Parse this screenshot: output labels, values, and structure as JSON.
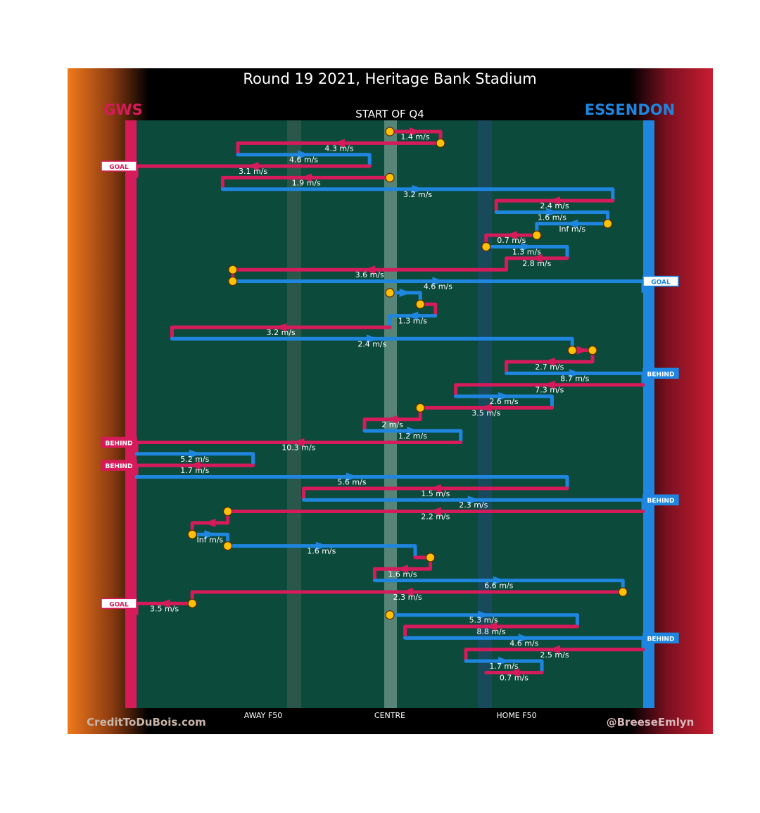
{
  "title": "Round 19 2021, Heritage Bank Stadium",
  "subtitle": "START OF Q4",
  "credit_left": "CreditToDuBois.com",
  "credit_right": "@BreeseEmlyn",
  "colors": {
    "gws": "#d61b5a",
    "essendon": "#1f86e0",
    "field": "#0c4a3c",
    "stop": "#ffc107"
  },
  "chart_data": {
    "type": "line",
    "teams": {
      "left": "GWS",
      "right": "ESSENDON"
    },
    "x_ticks": [
      {
        "label": "AWAY F50",
        "x": 0.25
      },
      {
        "label": "CENTRE",
        "x": 0.5
      },
      {
        "label": "HOME F50",
        "x": 0.75
      }
    ],
    "xlim": [
      0,
      1
    ],
    "chains": [
      {
        "team": "gws",
        "x0": 0.5,
        "x1": 0.6,
        "speed": "1.4 m/s",
        "start_stop": true,
        "end_stop": false
      },
      {
        "team": "gws",
        "x0": 0.6,
        "x1": 0.2,
        "speed": "4.3 m/s",
        "start_stop": true,
        "end_stop": false
      },
      {
        "team": "essendon",
        "x0": 0.2,
        "x1": 0.46,
        "speed": "4.6 m/s",
        "start_stop": false,
        "end_stop": false
      },
      {
        "team": "gws",
        "x0": 0.46,
        "x1": 0.0,
        "speed": "3.1 m/s",
        "start_stop": false,
        "end_stop": false,
        "outcome": "GOAL"
      },
      {
        "team": "gws",
        "x0": 0.5,
        "x1": 0.17,
        "speed": "1.9 m/s",
        "start_stop": true,
        "end_stop": false
      },
      {
        "team": "essendon",
        "x0": 0.17,
        "x1": 0.94,
        "speed": "3.2 m/s",
        "start_stop": false,
        "end_stop": false
      },
      {
        "team": "gws",
        "x0": 0.94,
        "x1": 0.71,
        "speed": "2.4 m/s",
        "start_stop": false,
        "end_stop": false
      },
      {
        "team": "essendon",
        "x0": 0.71,
        "x1": 0.93,
        "speed": "1.6 m/s",
        "start_stop": false,
        "end_stop": false
      },
      {
        "team": "essendon",
        "x0": 0.93,
        "x1": 0.79,
        "speed": "Inf m/s",
        "start_stop": true,
        "end_stop": false
      },
      {
        "team": "gws",
        "x0": 0.79,
        "x1": 0.69,
        "speed": "0.7 m/s",
        "start_stop": true,
        "end_stop": false
      },
      {
        "team": "essendon",
        "x0": 0.69,
        "x1": 0.85,
        "speed": "1.3 m/s",
        "start_stop": true,
        "end_stop": false
      },
      {
        "team": "gws",
        "x0": 0.85,
        "x1": 0.73,
        "speed": "2.8 m/s",
        "start_stop": false,
        "end_stop": false
      },
      {
        "team": "gws",
        "x0": 0.73,
        "x1": 0.19,
        "speed": "3.6 m/s",
        "start_stop": false,
        "end_stop": true
      },
      {
        "team": "essendon",
        "x0": 0.19,
        "x1": 1.0,
        "speed": "4.6 m/s",
        "start_stop": true,
        "end_stop": false,
        "outcome": "GOAL"
      },
      {
        "team": "essendon",
        "x0": 0.5,
        "x1": 0.56,
        "speed": "",
        "start_stop": true,
        "end_stop": false
      },
      {
        "team": "gws",
        "x0": 0.56,
        "x1": 0.59,
        "speed": "",
        "start_stop": true,
        "end_stop": false
      },
      {
        "team": "essendon",
        "x0": 0.59,
        "x1": 0.5,
        "speed": "1.3 m/s",
        "start_stop": false,
        "end_stop": false
      },
      {
        "team": "gws",
        "x0": 0.5,
        "x1": 0.07,
        "speed": "3.2 m/s",
        "start_stop": false,
        "end_stop": false
      },
      {
        "team": "essendon",
        "x0": 0.07,
        "x1": 0.86,
        "speed": "2.4 m/s",
        "start_stop": false,
        "end_stop": false
      },
      {
        "team": "gws",
        "x0": 0.86,
        "x1": 0.9,
        "speed": "",
        "start_stop": true,
        "end_stop": true
      },
      {
        "team": "gws",
        "x0": 0.9,
        "x1": 0.73,
        "speed": "2.7 m/s",
        "start_stop": false,
        "end_stop": false
      },
      {
        "team": "essendon",
        "x0": 0.73,
        "x1": 1.0,
        "speed": "8.7 m/s",
        "start_stop": false,
        "end_stop": false,
        "outcome": "BEHIND"
      },
      {
        "team": "gws",
        "x0": 1.0,
        "x1": 0.63,
        "speed": "7.3 m/s",
        "start_stop": false,
        "end_stop": false
      },
      {
        "team": "essendon",
        "x0": 0.63,
        "x1": 0.82,
        "speed": "2.6 m/s",
        "start_stop": false,
        "end_stop": false
      },
      {
        "team": "gws",
        "x0": 0.82,
        "x1": 0.56,
        "speed": "3.5 m/s",
        "start_stop": false,
        "end_stop": true
      },
      {
        "team": "gws",
        "x0": 0.56,
        "x1": 0.45,
        "speed": "2 m/s",
        "start_stop": false,
        "end_stop": false
      },
      {
        "team": "essendon",
        "x0": 0.45,
        "x1": 0.64,
        "speed": "1.2 m/s",
        "start_stop": false,
        "end_stop": false
      },
      {
        "team": "gws",
        "x0": 0.64,
        "x1": 0.0,
        "speed": "10.3 m/s",
        "start_stop": false,
        "end_stop": false,
        "outcome": "BEHIND"
      },
      {
        "team": "essendon",
        "x0": 0.0,
        "x1": 0.23,
        "speed": "5.2 m/s",
        "start_stop": false,
        "end_stop": false
      },
      {
        "team": "gws",
        "x0": 0.23,
        "x1": 0.0,
        "speed": "1.7 m/s",
        "start_stop": false,
        "end_stop": false,
        "outcome": "BEHIND"
      },
      {
        "team": "essendon",
        "x0": 0.0,
        "x1": 0.85,
        "speed": "5.6 m/s",
        "start_stop": false,
        "end_stop": false
      },
      {
        "team": "gws",
        "x0": 0.85,
        "x1": 0.33,
        "speed": "1.5 m/s",
        "start_stop": false,
        "end_stop": false
      },
      {
        "team": "essendon",
        "x0": 0.33,
        "x1": 1.0,
        "speed": "2.3 m/s",
        "start_stop": false,
        "end_stop": false,
        "outcome": "BEHIND"
      },
      {
        "team": "gws",
        "x0": 1.0,
        "x1": 0.18,
        "speed": "2.2 m/s",
        "start_stop": false,
        "end_stop": true
      },
      {
        "team": "gws",
        "x0": 0.18,
        "x1": 0.11,
        "speed": "",
        "start_stop": false,
        "end_stop": false
      },
      {
        "team": "essendon",
        "x0": 0.11,
        "x1": 0.18,
        "speed": "Inf m/s",
        "start_stop": true,
        "end_stop": false
      },
      {
        "team": "essendon",
        "x0": 0.18,
        "x1": 0.55,
        "speed": "1.6 m/s",
        "start_stop": true,
        "end_stop": false
      },
      {
        "team": "gws",
        "x0": 0.55,
        "x1": 0.58,
        "speed": "",
        "start_stop": false,
        "end_stop": true
      },
      {
        "team": "gws",
        "x0": 0.58,
        "x1": 0.47,
        "speed": "1.6 m/s",
        "start_stop": false,
        "end_stop": false
      },
      {
        "team": "essendon",
        "x0": 0.47,
        "x1": 0.96,
        "speed": "6.6 m/s",
        "start_stop": false,
        "end_stop": false
      },
      {
        "team": "gws",
        "x0": 0.96,
        "x1": 0.11,
        "speed": "2.3 m/s",
        "start_stop": true,
        "end_stop": false
      },
      {
        "team": "gws",
        "x0": 0.11,
        "x1": 0.0,
        "speed": "3.5 m/s",
        "start_stop": true,
        "end_stop": false,
        "outcome": "GOAL"
      },
      {
        "team": "essendon",
        "x0": 0.5,
        "x1": 0.87,
        "speed": "5.3 m/s",
        "start_stop": true,
        "end_stop": false
      },
      {
        "team": "gws",
        "x0": 0.87,
        "x1": 0.53,
        "speed": "8.8 m/s",
        "start_stop": false,
        "end_stop": false
      },
      {
        "team": "essendon",
        "x0": 0.53,
        "x1": 1.0,
        "speed": "4.6 m/s",
        "start_stop": false,
        "end_stop": false,
        "outcome": "BEHIND"
      },
      {
        "team": "gws",
        "x0": 1.0,
        "x1": 0.65,
        "speed": "2.5 m/s",
        "start_stop": false,
        "end_stop": false
      },
      {
        "team": "essendon",
        "x0": 0.65,
        "x1": 0.8,
        "speed": "1.7 m/s",
        "start_stop": false,
        "end_stop": false
      },
      {
        "team": "gws",
        "x0": 0.8,
        "x1": 0.69,
        "speed": "0.7 m/s",
        "start_stop": false,
        "end_stop": false
      }
    ]
  }
}
